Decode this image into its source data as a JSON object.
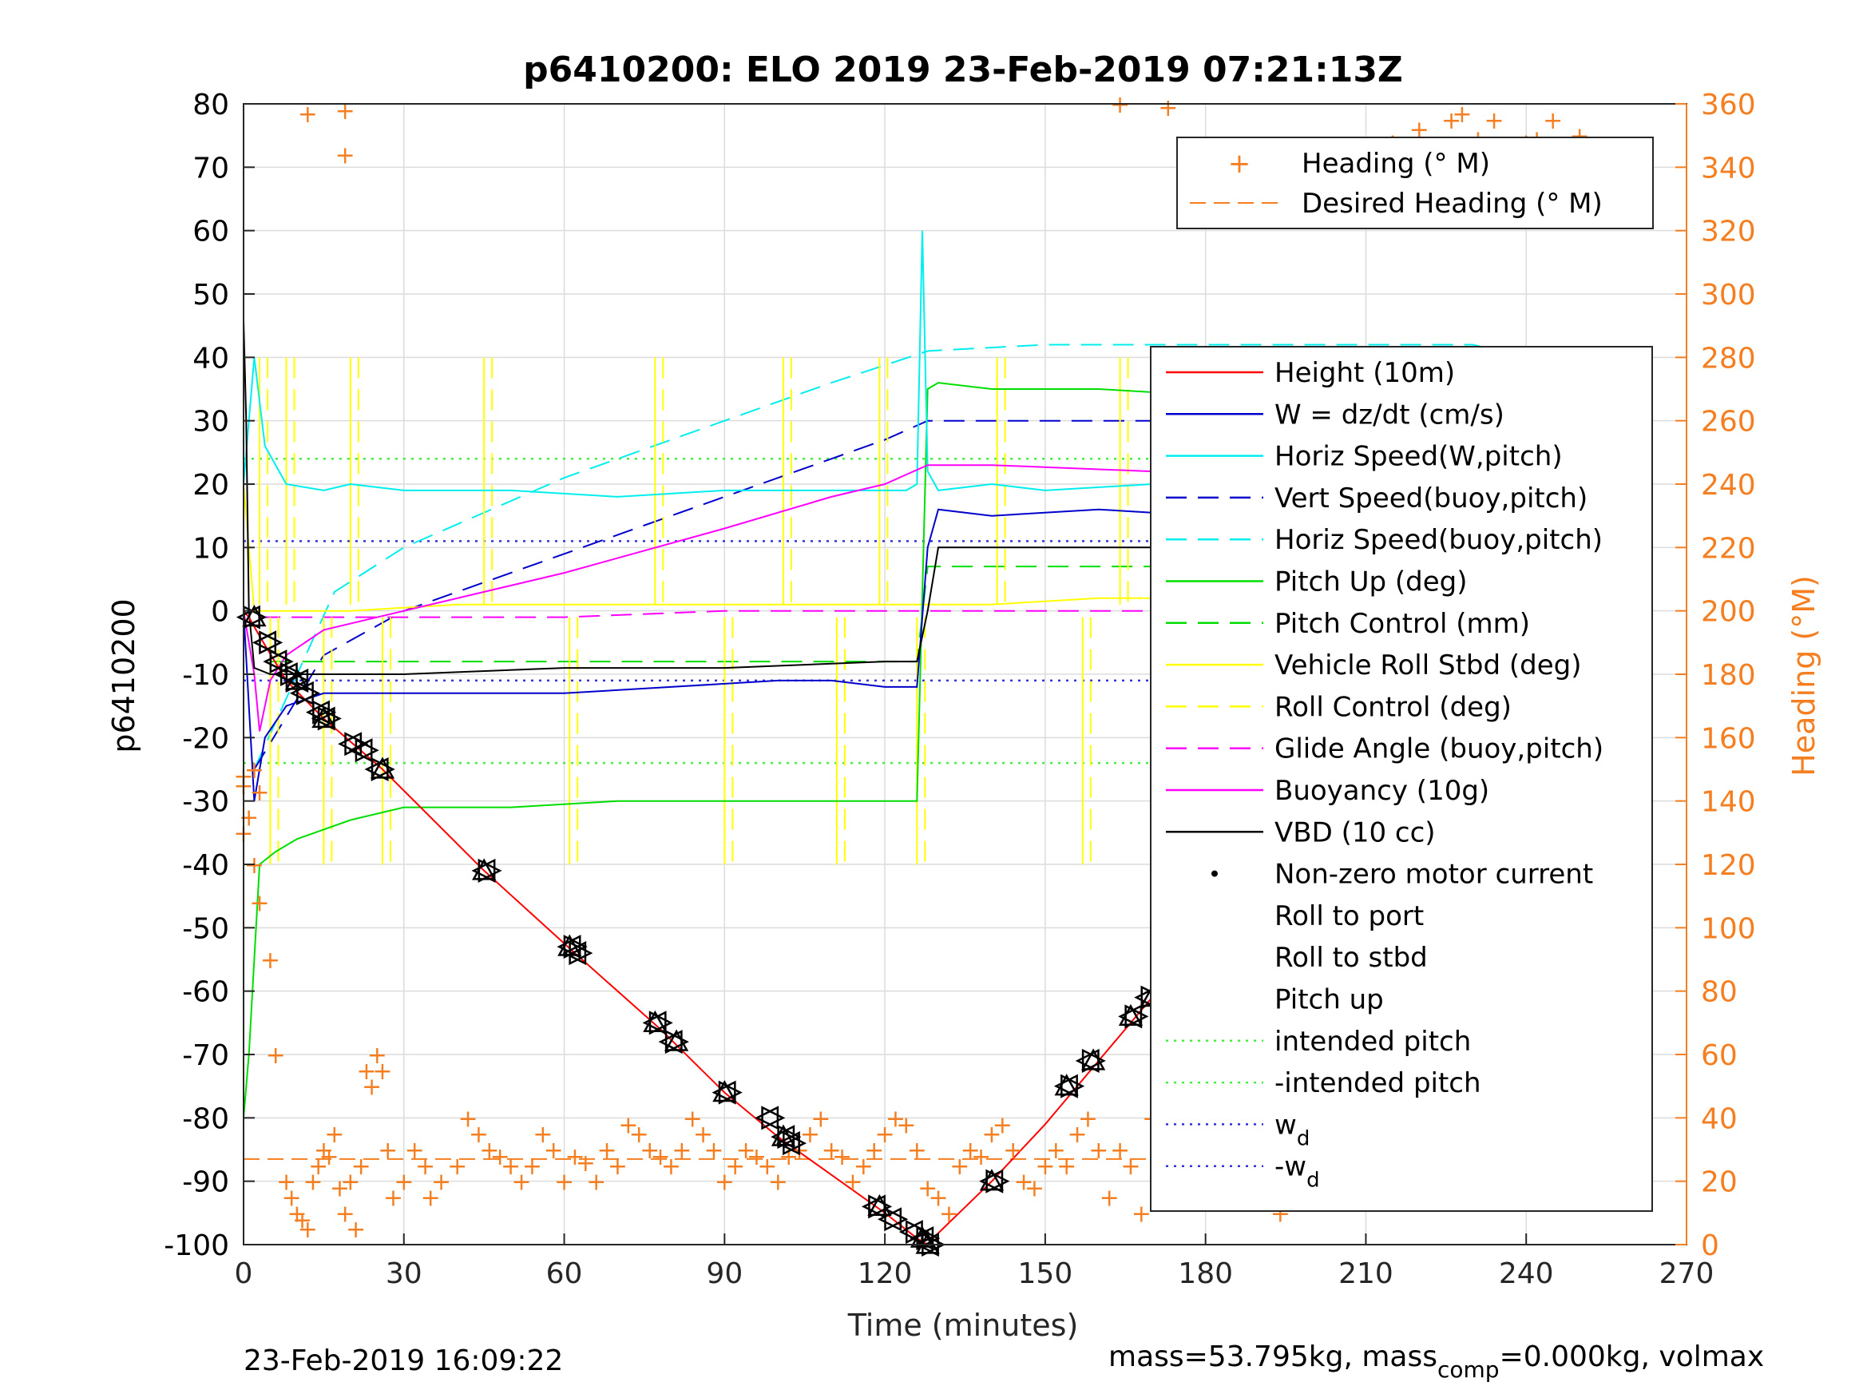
{
  "chart_data": {
    "type": "line",
    "title": "p6410200: ELO 2019 23-Feb-2019 07:21:13Z",
    "xlabel": "Time (minutes)",
    "ylabel_left": "p6410200",
    "ylabel_right": "Heading (°M)",
    "xlim": [
      0,
      270
    ],
    "ylim_left": [
      -100,
      80
    ],
    "ylim_right": [
      0,
      360
    ],
    "x_ticks": [
      "0",
      "30",
      "60",
      "90",
      "120",
      "150",
      "180",
      "210",
      "240",
      "270"
    ],
    "y_ticks_left": [
      "80",
      "70",
      "60",
      "50",
      "40",
      "30",
      "20",
      "10",
      "0",
      "-10",
      "-20",
      "-30",
      "-40",
      "-50",
      "-60",
      "-70",
      "-80",
      "-90",
      "-100"
    ],
    "y_ticks_right": [
      "360",
      "340",
      "320",
      "300",
      "280",
      "260",
      "240",
      "220",
      "200",
      "180",
      "160",
      "140",
      "120",
      "100",
      "80",
      "60",
      "40",
      "20",
      "0"
    ],
    "grid": true,
    "colors": {
      "height": "#ff0000",
      "w": "#0000cc",
      "horiz_speed_w": "#00eeee",
      "vert_speed_buoy": "#0000cc",
      "horiz_speed_buoy": "#00eeee",
      "pitch_up": "#00dd00",
      "pitch_control": "#00dd00",
      "roll_stbd": "#ffff00",
      "roll_control": "#ffff00",
      "glide_angle": "#ff00ff",
      "buoyancy": "#ff00ff",
      "vbd": "#000000",
      "heading": "#f57f20",
      "intended_pitch": "#44ee44",
      "wd": "#3333dd"
    },
    "legend_heading": [
      "Heading (° M)",
      "Desired Heading (° M)"
    ],
    "legend_main": [
      "Height (10m)",
      "W = dz/dt (cm/s)",
      "Horiz Speed(W,pitch)",
      "Vert Speed(buoy,pitch)",
      "Horiz Speed(buoy,pitch)",
      "Pitch Up (deg)",
      "Pitch Control (mm)",
      "Vehicle Roll Stbd (deg)",
      "Roll Control (deg)",
      "Glide Angle (buoy,pitch)",
      "Buoyancy (10g)",
      "VBD (10 cc)",
      "Non-zero motor current",
      "Roll to port",
      "Roll to stbd",
      "Pitch up",
      "intended pitch",
      "-intended pitch",
      "w",
      "-w"
    ],
    "legend_sub_d": "d",
    "series": {
      "height": {
        "x": [
          0,
          1,
          3,
          8,
          15,
          26,
          45,
          62,
          78,
          90,
          100,
          110,
          120,
          126,
          128,
          129,
          140,
          150,
          160,
          170,
          180,
          190,
          200,
          210,
          220,
          230,
          240,
          246,
          251
        ],
        "y": [
          0,
          -1,
          -4,
          -11,
          -17,
          -25,
          -41,
          -54,
          -66,
          -76,
          -83,
          -89,
          -95,
          -99,
          -100,
          -99,
          -90,
          -81,
          -71,
          -61,
          -52,
          -41,
          -33,
          -25,
          -16,
          -9,
          -3,
          -1,
          0
        ]
      },
      "w": {
        "x": [
          0,
          2,
          4,
          8,
          15,
          25,
          40,
          60,
          80,
          100,
          110,
          120,
          124,
          126,
          128,
          130,
          140,
          160,
          180,
          200,
          220,
          240,
          250
        ],
        "y": [
          0,
          -30,
          -20,
          -15,
          -13,
          -13,
          -13,
          -13,
          -12,
          -11,
          -11,
          -12,
          -12,
          -12,
          10,
          16,
          15,
          16,
          15,
          15,
          15,
          11,
          10
        ]
      },
      "horiz_speed_w": {
        "x": [
          0,
          2,
          4,
          8,
          15,
          20,
          30,
          50,
          70,
          90,
          110,
          120,
          124,
          126,
          127,
          128,
          130,
          140,
          150,
          170,
          190,
          210,
          230,
          245,
          250
        ],
        "y": [
          20,
          40,
          26,
          20,
          19,
          20,
          19,
          19,
          18,
          19,
          19,
          19,
          19,
          20,
          60,
          22,
          19,
          20,
          19,
          20,
          19,
          20,
          18,
          22,
          25
        ]
      },
      "vert_speed_buoy": {
        "x": [
          2,
          15,
          30,
          60,
          90,
          110,
          120,
          128,
          140,
          160,
          180,
          200,
          220,
          240,
          248
        ],
        "y": [
          -25,
          -7,
          0,
          9,
          18,
          24,
          27,
          30,
          30,
          30,
          30,
          30,
          29,
          27,
          17
        ]
      },
      "horiz_speed_buoy": {
        "x": [
          2,
          17,
          30,
          60,
          90,
          110,
          128,
          150,
          170,
          190,
          210,
          230,
          240,
          248
        ],
        "y": [
          -25,
          3,
          10,
          21,
          30,
          36,
          41,
          42,
          42,
          42,
          42,
          42,
          40,
          35
        ]
      },
      "pitch_up": {
        "x": [
          0,
          1,
          3,
          6,
          10,
          20,
          30,
          50,
          70,
          90,
          110,
          125,
          126,
          128,
          130,
          140,
          160,
          180,
          200,
          220,
          240,
          250
        ],
        "y": [
          -80,
          -70,
          -40,
          -38,
          -36,
          -33,
          -31,
          -31,
          -30,
          -30,
          -30,
          -30,
          -30,
          35,
          36,
          35,
          35,
          34,
          33,
          32,
          30,
          28
        ]
      },
      "pitch_control": {
        "x": [
          5,
          20,
          60,
          100,
          126,
          128,
          150,
          200,
          240,
          248
        ],
        "y": [
          -8,
          -8,
          -8,
          -8,
          -8,
          7,
          7,
          7,
          7,
          7
        ]
      },
      "roll_stbd": {
        "x": [
          0,
          2,
          4,
          10,
          20,
          40,
          60,
          80,
          100,
          120,
          126,
          128,
          140,
          160,
          180,
          200,
          220,
          240,
          250
        ],
        "y": [
          20,
          0,
          0,
          0,
          0,
          1,
          1,
          1,
          1,
          1,
          1,
          1,
          1,
          2,
          2,
          2,
          3,
          3,
          2
        ]
      },
      "roll_spikes_x": [
        3,
        5,
        8,
        15,
        20,
        26,
        45,
        61,
        77,
        90,
        101,
        111,
        119,
        126,
        141,
        157,
        164,
        170,
        178,
        190,
        200,
        215,
        226,
        236,
        246
      ],
      "glide_angle": {
        "x": [
          3,
          30,
          60,
          90,
          120,
          126,
          128,
          150,
          180,
          210,
          240,
          251
        ],
        "y": [
          -1,
          -1,
          -1,
          0,
          0,
          0,
          0,
          0,
          0,
          0,
          0,
          0
        ]
      },
      "buoyancy": {
        "x": [
          0,
          2,
          3,
          5,
          8,
          15,
          30,
          60,
          90,
          110,
          120,
          128,
          140,
          170,
          190,
          210,
          230,
          240,
          246,
          250
        ],
        "y": [
          0,
          -10,
          -19,
          -11,
          -7,
          -3,
          0,
          6,
          13,
          18,
          20,
          23,
          23,
          22,
          20,
          19,
          17,
          14,
          17,
          24
        ]
      },
      "vbd": {
        "x": [
          0,
          0.5,
          1,
          2,
          5,
          30,
          60,
          90,
          120,
          126,
          128,
          130,
          160,
          200,
          230,
          240,
          244,
          246,
          248,
          250
        ],
        "y": [
          46,
          30,
          0,
          -9,
          -10,
          -10,
          -9,
          -9,
          -8,
          -8,
          0,
          10,
          10,
          10,
          10,
          17,
          22,
          30,
          34,
          36
        ]
      },
      "roll_port_markers": {
        "x": [
          1,
          4,
          6,
          8,
          10,
          11,
          14,
          15,
          20,
          22,
          25,
          45,
          61,
          62,
          77,
          80,
          90,
          98,
          101,
          102,
          118,
          121,
          125,
          127,
          128,
          140,
          154,
          158,
          166,
          169,
          174,
          181,
          186,
          190,
          194,
          210,
          218,
          222,
          226,
          229,
          232,
          236,
          241,
          244,
          248
        ],
        "y": [
          -1,
          -5,
          -8,
          -10,
          -11,
          -13,
          -16,
          -17,
          -21,
          -22,
          -25,
          -41,
          -53,
          -54,
          -65,
          -68,
          -76,
          -80,
          -83,
          -84,
          -94,
          -96,
          -98,
          -99,
          -100,
          -90,
          -75,
          -71,
          -64,
          -61,
          -57,
          -48,
          -45,
          -41,
          -38,
          -26,
          -21,
          -18,
          -16,
          -14,
          -12,
          -9,
          -5,
          -3,
          -1
        ]
      },
      "roll_stbd_markers": {
        "x": [
          2,
          5,
          7,
          9,
          10,
          12,
          15,
          16,
          21,
          23,
          26,
          46,
          62,
          63,
          78,
          81,
          91,
          99,
          102,
          103,
          119,
          122,
          126,
          128,
          129,
          141,
          155,
          159,
          167,
          170,
          175,
          182,
          187,
          191,
          195,
          211,
          219,
          223,
          227,
          230,
          233,
          237,
          242,
          245,
          249,
          251
        ],
        "y": [
          -1,
          -5,
          -8,
          -10,
          -11,
          -13,
          -16,
          -17,
          -21,
          -22,
          -25,
          -41,
          -53,
          -54,
          -65,
          -68,
          -76,
          -80,
          -83,
          -84,
          -94,
          -96,
          -98,
          -99,
          -100,
          -90,
          -75,
          -71,
          -64,
          -61,
          -57,
          -48,
          -45,
          -41,
          -38,
          -26,
          -21,
          -18,
          -16,
          -14,
          -12,
          -9,
          -5,
          -3,
          -1,
          0
        ]
      },
      "pitch_up_markers": {
        "x": [
          2,
          10,
          15,
          26,
          45,
          61,
          77,
          81,
          90,
          101,
          119,
          127,
          128,
          140,
          154,
          159,
          166,
          170,
          174,
          210,
          226,
          241,
          250
        ],
        "y": [
          -1,
          -11,
          -17,
          -25,
          -41,
          -53,
          -65,
          -68,
          -76,
          -83,
          -94,
          -99,
          -100,
          -90,
          -75,
          -71,
          -64,
          -61,
          -57,
          -26,
          -16,
          -5,
          0
        ]
      },
      "intended_pitch": 24,
      "wd": 11,
      "desired_heading": 27,
      "heading_points": {
        "x": [
          0,
          1,
          2,
          3,
          5,
          6,
          8,
          9,
          10,
          11,
          12,
          13,
          14,
          15,
          16,
          17,
          18,
          19,
          20,
          21,
          22,
          23,
          24,
          25,
          26,
          27,
          28,
          30,
          32,
          34,
          35,
          37,
          40,
          42,
          44,
          46,
          48,
          50,
          52,
          54,
          56,
          58,
          60,
          62,
          64,
          66,
          68,
          70,
          72,
          74,
          76,
          78,
          80,
          82,
          84,
          86,
          88,
          90,
          92,
          94,
          96,
          98,
          100,
          102,
          104,
          106,
          108,
          110,
          112,
          114,
          116,
          118,
          120,
          122,
          124,
          126,
          128,
          130,
          132,
          134,
          136,
          138,
          140,
          142,
          144,
          146,
          148,
          150,
          152,
          154,
          156,
          158,
          160,
          162,
          164,
          166,
          168,
          170,
          172,
          174,
          176,
          178,
          180,
          182,
          184,
          186,
          188,
          190,
          192,
          194,
          196,
          198,
          200,
          202,
          204,
          206,
          208,
          210,
          212,
          214,
          216,
          218,
          220,
          222,
          224,
          226,
          228,
          230,
          232,
          234,
          236,
          238,
          240,
          242,
          244,
          246,
          248,
          250,
          12,
          19,
          19,
          164,
          173,
          215,
          216,
          220,
          226,
          228,
          231,
          234,
          240,
          242,
          245,
          250,
          0,
          2,
          3,
          0,
          246,
          247,
          246,
          247
        ],
        "y": [
          145,
          135,
          120,
          108,
          90,
          60,
          20,
          15,
          10,
          8,
          5,
          20,
          25,
          30,
          28,
          35,
          18,
          10,
          20,
          5,
          25,
          55,
          50,
          60,
          55,
          30,
          15,
          20,
          30,
          25,
          15,
          20,
          25,
          40,
          35,
          30,
          28,
          25,
          20,
          25,
          35,
          30,
          20,
          28,
          26,
          20,
          30,
          25,
          38,
          35,
          30,
          28,
          25,
          30,
          40,
          35,
          30,
          20,
          25,
          30,
          28,
          25,
          20,
          28,
          30,
          35,
          40,
          30,
          28,
          20,
          25,
          30,
          35,
          40,
          38,
          30,
          18,
          15,
          10,
          25,
          30,
          28,
          35,
          38,
          30,
          20,
          18,
          25,
          30,
          25,
          35,
          40,
          30,
          15,
          30,
          25,
          10,
          40,
          30,
          25,
          28,
          20,
          25,
          15,
          30,
          40,
          35,
          30,
          20,
          10,
          30,
          35,
          40,
          25,
          20,
          30,
          35,
          40,
          30,
          20,
          25,
          30,
          35,
          40,
          35,
          25,
          30,
          55,
          40,
          30,
          25,
          20,
          28,
          35,
          40,
          20,
          100,
          15,
          357,
          358,
          344,
          360,
          359,
          348,
          343,
          352,
          355,
          357,
          349,
          355,
          348,
          349,
          355,
          350,
          148,
          150,
          143,
          130,
          100,
          80,
          60,
          50
        ]
      }
    }
  },
  "footer": {
    "timestamp": "23-Feb-2019 16:09:22",
    "mass_text_a": "mass=53.795kg, mass",
    "mass_sub": "comp",
    "mass_text_b": "=0.000kg, volmax"
  }
}
